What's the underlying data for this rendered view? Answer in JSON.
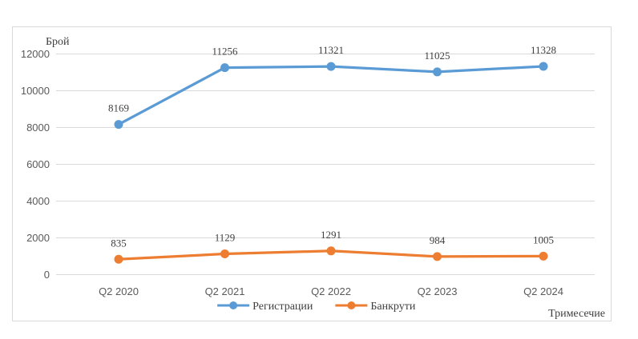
{
  "chart_data": {
    "type": "line",
    "ylabel": "Брой",
    "xlabel": "Тримесечие",
    "categories": [
      "Q2 2020",
      "Q2 2021",
      "Q2 2022",
      "Q2 2023",
      "Q2 2024"
    ],
    "series": [
      {
        "id": "registrations",
        "name": "Регистрации",
        "color": "#5B9BD5",
        "values": [
          8169,
          11256,
          11321,
          11025,
          11328
        ]
      },
      {
        "id": "bankrupts",
        "name": "Банкрути",
        "color": "#ED7D31",
        "values": [
          835,
          1129,
          1291,
          984,
          1005
        ]
      }
    ],
    "ylim": [
      0,
      12000
    ],
    "yticks": [
      0,
      2000,
      4000,
      6000,
      8000,
      10000,
      12000
    ],
    "grid": true,
    "legend_position": "bottom",
    "data_labels": true
  },
  "style_colors": {
    "grid": "#D9D9D9",
    "frame_border": "#D9D9D9",
    "tick_label": "#595959",
    "data_label": "#3F3F3F",
    "background": "#FFFFFF"
  }
}
